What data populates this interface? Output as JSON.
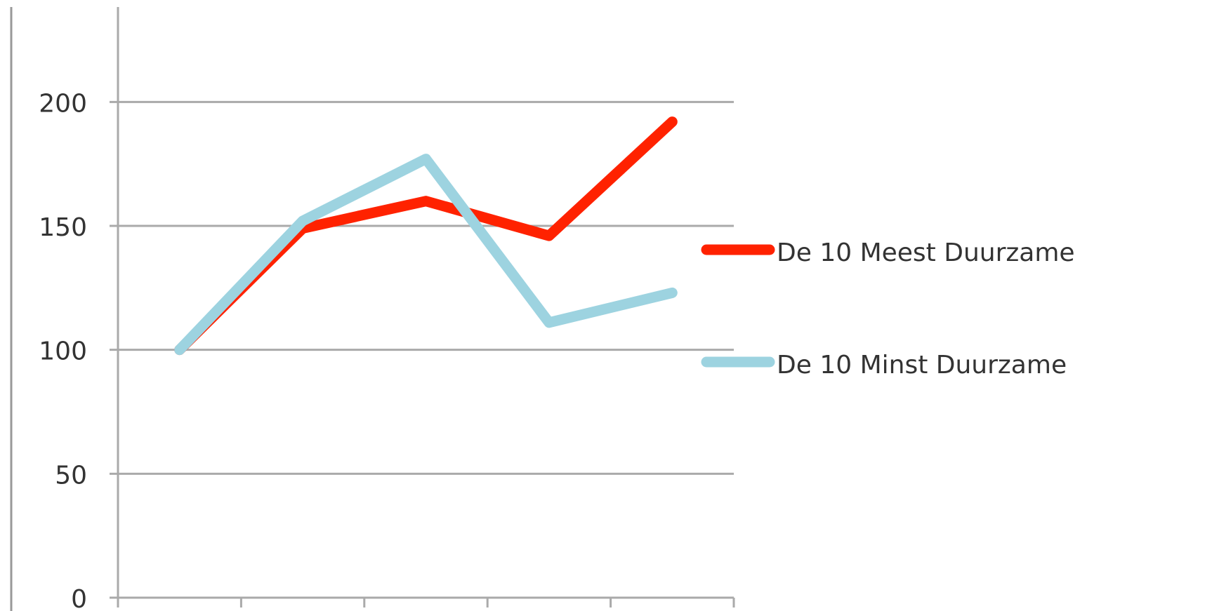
{
  "chart_data": {
    "type": "line",
    "categories": [
      null,
      null,
      null,
      null,
      null
    ],
    "series": [
      {
        "name": "De 10 Meest Duurzame",
        "color": "#ff2200",
        "values": [
          100,
          149,
          160,
          146,
          192
        ]
      },
      {
        "name": "De 10 Minst Duurzame",
        "color": "#9dd3e0",
        "values": [
          100,
          152,
          177,
          111,
          123
        ]
      }
    ],
    "ylim": [
      0,
      240
    ],
    "yticks": [
      0,
      50,
      100,
      150,
      200
    ],
    "grid": true,
    "legend": "right"
  }
}
